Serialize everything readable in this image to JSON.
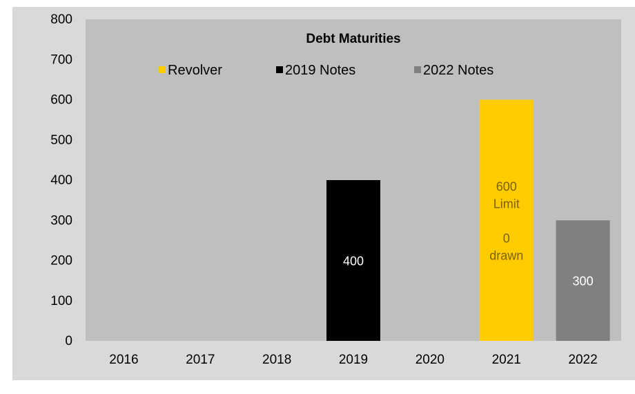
{
  "chart_data": {
    "type": "bar",
    "title": "Debt Maturities",
    "xlabel": "",
    "ylabel": "",
    "categories": [
      "2016",
      "2017",
      "2018",
      "2019",
      "2020",
      "2021",
      "2022"
    ],
    "ylim": [
      0,
      800
    ],
    "yticks": [
      0,
      100,
      200,
      300,
      400,
      500,
      600,
      700,
      800
    ],
    "grid": false,
    "legend_position": "top",
    "plot_background": "#bfbfbf",
    "outer_background": "#d9d9d9",
    "series": [
      {
        "name": "Revolver",
        "color": "#ffcc00",
        "label_color": "#7f6000",
        "values": [
          0,
          0,
          0,
          0,
          0,
          600,
          0
        ],
        "data_labels": {
          "2021": [
            "600",
            "Limit",
            "",
            "0",
            "drawn"
          ]
        }
      },
      {
        "name": "2019 Notes",
        "color": "#000000",
        "label_color": "#ffffff",
        "values": [
          0,
          0,
          0,
          400,
          0,
          0,
          0
        ],
        "data_labels": {
          "2019": [
            "400"
          ]
        }
      },
      {
        "name": "2022 Notes",
        "color": "#808080",
        "label_color": "#ffffff",
        "values": [
          0,
          0,
          0,
          0,
          0,
          0,
          300
        ],
        "data_labels": {
          "2022": [
            "300"
          ]
        }
      }
    ]
  }
}
